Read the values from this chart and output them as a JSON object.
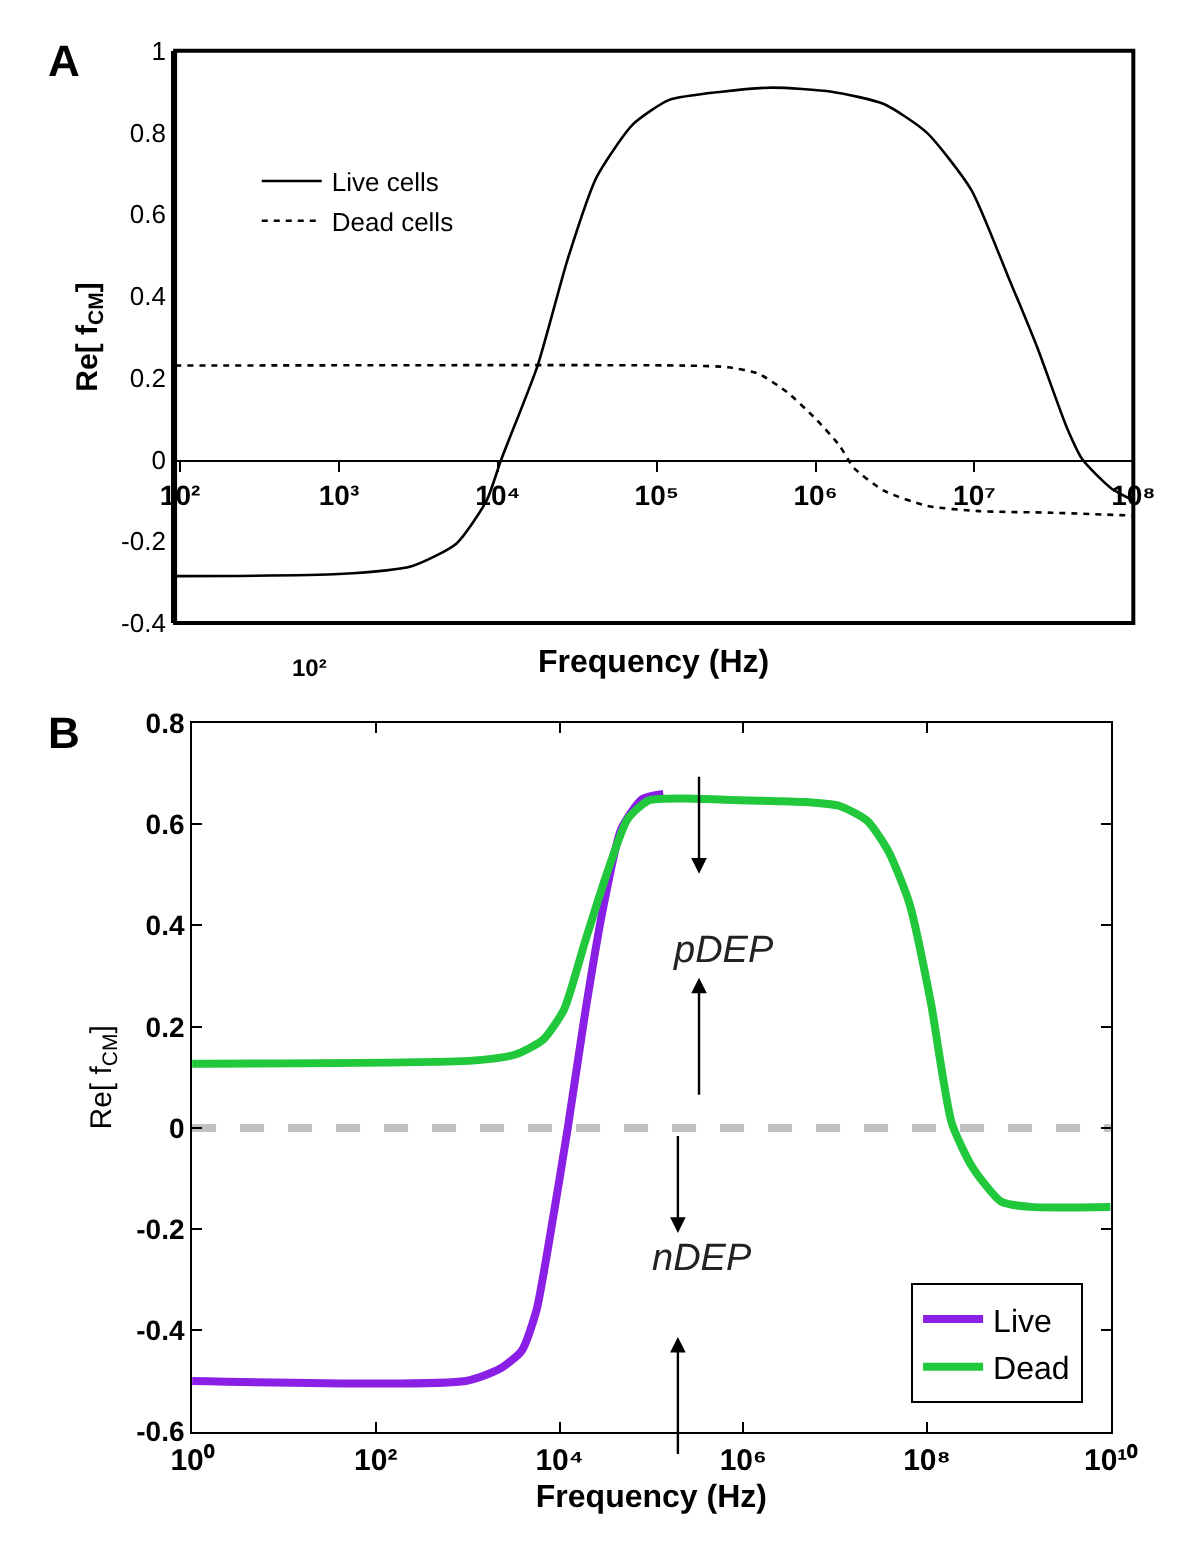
{
  "chart_data": [
    {
      "type": "line",
      "title": "A",
      "xlabel": "Frequency (Hz)",
      "ylabel": "Re[ f$_{CM}$]",
      "log": "x",
      "xlim": [
        93,
        100000000
      ],
      "ylim": [
        -0.4,
        1
      ],
      "xticks": [
        {
          "value": 100,
          "label": "10²"
        },
        {
          "value": 1000,
          "label": "10³"
        },
        {
          "value": 10000,
          "label": "10⁴"
        },
        {
          "value": 100000,
          "label": "10⁵"
        },
        {
          "value": 1000000,
          "label": "10⁶"
        },
        {
          "value": 10000000,
          "label": "10⁷"
        },
        {
          "value": 100000000,
          "label": "10⁸"
        }
      ],
      "yticks": [
        -0.4,
        -0.2,
        0,
        0.2,
        0.4,
        0.6,
        0.8,
        1
      ],
      "legend": "top left",
      "grid": false,
      "marker": "none",
      "line_style": "solid",
      "annotations": [
        "10²"
      ],
      "series": [
        {
          "name": "Live cells",
          "color": "#000000",
          "line_style": "solid",
          "x": [
            93,
            1000,
            2900,
            5500,
            8500,
            10500,
            17800,
            27500,
            41700,
            70800,
            120000,
            257000,
            537000,
            1260000,
            2690000,
            5010000,
            9550000,
            16200000,
            25100000,
            38000000,
            47900000,
            72400000,
            100000000
          ],
          "values": [
            -0.285,
            -0.28,
            -0.26,
            -0.205,
            -0.1,
            0,
            0.23,
            0.49,
            0.69,
            0.82,
            0.88,
            0.9,
            0.91,
            0.9,
            0.87,
            0.8,
            0.66,
            0.45,
            0.27,
            0.08,
            0,
            -0.07,
            -0.1
          ]
        },
        {
          "name": "Dead cells",
          "color": "#000000",
          "line_style": "dotted",
          "x": [
            93,
            151000,
            282000,
            437000,
            661000,
            1000000,
            1410000,
            1740000,
            2690000,
            5010000,
            10700000,
            30900000,
            100000000
          ],
          "values": [
            0.23,
            0.23,
            0.226,
            0.21,
            0.165,
            0.1,
            0.035,
            -0.02,
            -0.076,
            -0.113,
            -0.126,
            -0.13,
            -0.137
          ]
        }
      ]
    },
    {
      "type": "line",
      "title": "B",
      "xlabel": "Frequency (Hz)",
      "ylabel": "Re[ f$_{CM}$]",
      "log": "x",
      "xlim": [
        1,
        10000000000
      ],
      "ylim": [
        -0.6,
        0.8
      ],
      "xticks": [
        {
          "value": 1,
          "label": "10⁰"
        },
        {
          "value": 100,
          "label": "10²"
        },
        {
          "value": 10000,
          "label": "10⁴"
        },
        {
          "value": 1000000,
          "label": "10⁶"
        },
        {
          "value": 100000000,
          "label": "10⁸"
        },
        {
          "value": 10000000000,
          "label": "10¹⁰"
        }
      ],
      "yticks": [
        -0.6,
        -0.4,
        -0.2,
        0,
        0.2,
        0.4,
        0.6,
        0.8
      ],
      "legend": "bottom right",
      "grid": false,
      "marker": "none",
      "line_style": "solid",
      "ref_lines": [
        {
          "axis": "y",
          "value": 0,
          "color": "#c0c0c0",
          "line_style": "dashed"
        }
      ],
      "annotations": [
        "pDEP",
        "nDEP"
      ],
      "series": [
        {
          "name": "Live",
          "color": "#8a1fe6",
          "x": [
            1,
            955,
            2290,
            3890,
            5620,
            7940,
            12300,
            19100,
            29500,
            46800,
            79400,
            135000
          ],
          "values": [
            -0.5,
            -0.5,
            -0.475,
            -0.44,
            -0.36,
            -0.21,
            0,
            0.23,
            0.43,
            0.59,
            0.65,
            0.66
          ]
        },
        {
          "name": "Dead",
          "color": "#22c83c",
          "x": [
            1,
            1120,
            3310,
            6610,
            11200,
            19100,
            32400,
            55000,
            93300,
            229000,
            776000,
            4570000,
            11200000,
            22400000,
            38000000,
            64600000,
            110000000,
            186000000,
            316000000,
            646000000,
            1320000000,
            10000000000
          ],
          "values": [
            0.127,
            0.133,
            0.145,
            0.174,
            0.234,
            0.37,
            0.5,
            0.61,
            0.647,
            0.651,
            0.648,
            0.644,
            0.636,
            0.607,
            0.547,
            0.443,
            0.249,
            0.01,
            -0.079,
            -0.146,
            -0.156,
            -0.156
          ]
        }
      ]
    }
  ]
}
